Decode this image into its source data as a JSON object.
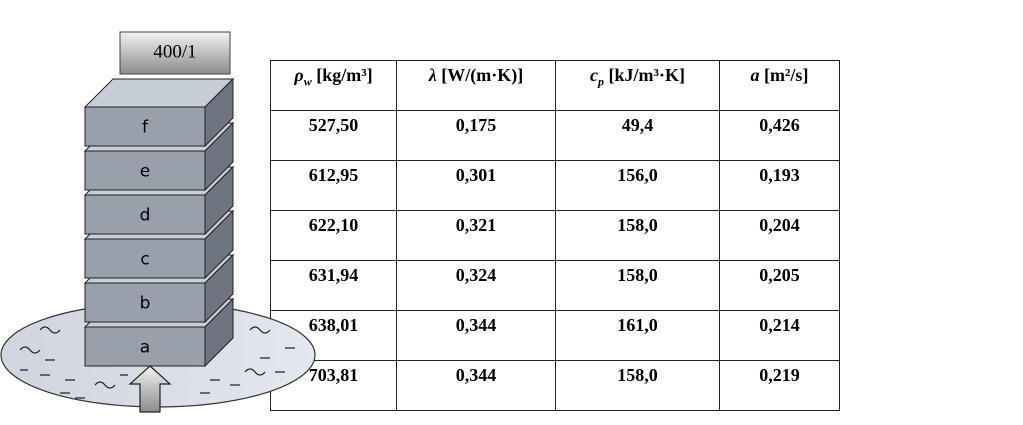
{
  "label": "400/1",
  "layers": [
    "a",
    "b",
    "c",
    "d",
    "e",
    "f"
  ],
  "table": {
    "headers": [
      {
        "symbol": "ρ",
        "sub": "w",
        "unit": "[kg/m³]"
      },
      {
        "symbol": "λ",
        "unit": "[W/(m·K)]"
      },
      {
        "symbol": "c",
        "sub": "p",
        "unit": "[kJ/m³·K]"
      },
      {
        "symbol": "a",
        "unit": "[m²/s]"
      }
    ],
    "rows": [
      [
        "527,50",
        "0,175",
        "49,4",
        "0,426"
      ],
      [
        "612,95",
        "0,301",
        "156,0",
        "0,193"
      ],
      [
        "622,10",
        "0,321",
        "158,0",
        "0,204"
      ],
      [
        "631,94",
        "0,324",
        "158,0",
        "0,205"
      ],
      [
        "638,01",
        "0,344",
        "161,0",
        "0,214"
      ],
      [
        "703,81",
        "0,344",
        "158,0",
        "0,219"
      ]
    ]
  }
}
